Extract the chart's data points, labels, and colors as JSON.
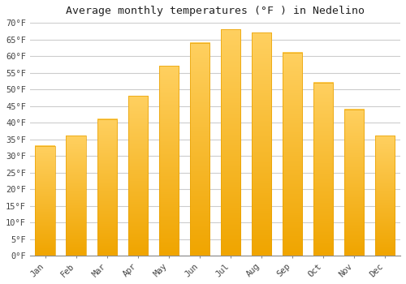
{
  "title": "Average monthly temperatures (°F ) in Nedelino",
  "months": [
    "Jan",
    "Feb",
    "Mar",
    "Apr",
    "May",
    "Jun",
    "Jul",
    "Aug",
    "Sep",
    "Oct",
    "Nov",
    "Dec"
  ],
  "values": [
    33,
    36,
    41,
    48,
    57,
    64,
    68,
    67,
    61,
    52,
    44,
    36
  ],
  "bar_color_top": "#FFC84A",
  "bar_color_bottom": "#F0A500",
  "bar_edge_color": "#E8A000",
  "background_color": "#FFFFFF",
  "grid_color": "#CCCCCC",
  "ylim": [
    0,
    70
  ],
  "yticks": [
    0,
    5,
    10,
    15,
    20,
    25,
    30,
    35,
    40,
    45,
    50,
    55,
    60,
    65,
    70
  ],
  "title_fontsize": 9.5,
  "tick_fontsize": 7.5,
  "figsize": [
    5.0,
    3.5
  ],
  "dpi": 100
}
